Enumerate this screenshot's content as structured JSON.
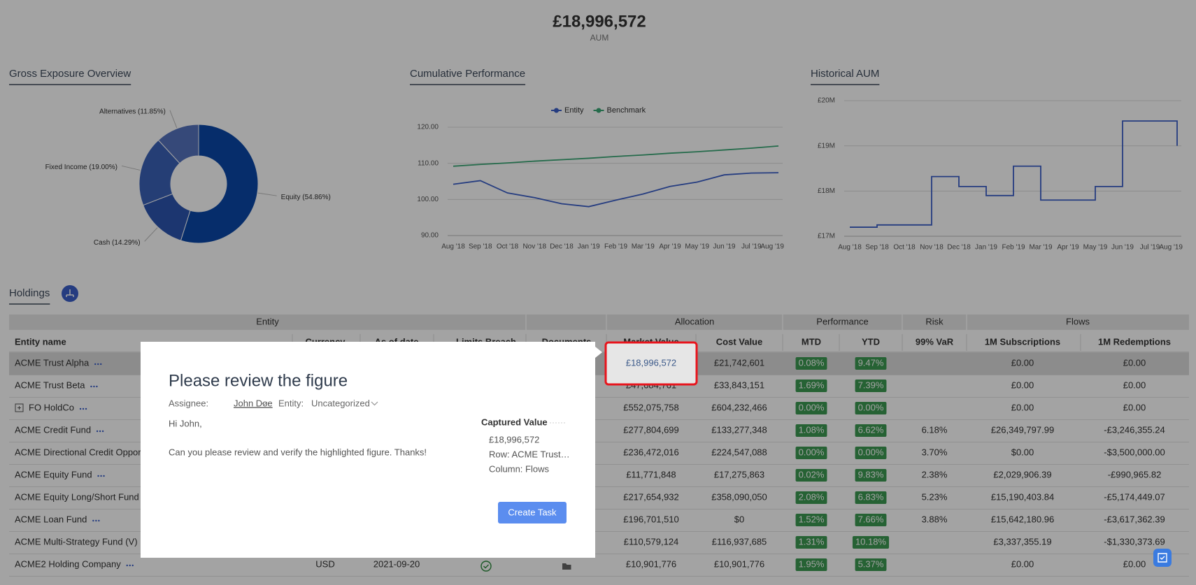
{
  "header": {
    "aum": "£18,996,572",
    "label": "AUM"
  },
  "charts": [
    {
      "type": "pie",
      "donut": true,
      "title": "Gross Exposure Overview",
      "values": [
        54.86,
        14.29,
        19.0,
        11.85
      ],
      "value_labels": [
        "Equity (54.86%)",
        "Cash (14.29%)",
        "Fixed Income (19.00%)",
        "Alternatives (11.85%)"
      ],
      "colors": [
        "#0a47a8",
        "#2c55b0",
        "#3a61b8",
        "#5572bd"
      ]
    },
    {
      "type": "line",
      "title": "Cumulative Performance",
      "categories": [
        "Aug '18",
        "Sep '18",
        "Oct '18",
        "Nov '18",
        "Dec '18",
        "Jan '19",
        "Feb '19",
        "Mar '19",
        "Apr '19",
        "May '19",
        "Jun '19",
        "Jul '19",
        "Aug '19"
      ],
      "series": [
        {
          "name": "Entity",
          "color": "#3a5fc8",
          "values": [
            104.2,
            105.2,
            101.8,
            100.5,
            98.8,
            98.0,
            99.8,
            101.5,
            103.6,
            104.8,
            106.8,
            107.3,
            107.4
          ]
        },
        {
          "name": "Benchmark",
          "color": "#3aa876",
          "values": [
            109.2,
            109.7,
            110.1,
            110.6,
            111.0,
            111.4,
            111.9,
            112.3,
            112.8,
            113.2,
            113.7,
            114.2,
            114.8
          ]
        }
      ],
      "ylim": [
        90,
        120
      ],
      "yticks": [
        {
          "value": 90,
          "label": "90.00"
        },
        {
          "value": 100,
          "label": "100.00"
        },
        {
          "value": 110,
          "label": "110.00"
        },
        {
          "value": 120,
          "label": "120.00"
        }
      ],
      "grid": true,
      "legend": "top"
    },
    {
      "type": "line",
      "step": "after",
      "title": "Historical AUM",
      "categories": [
        "Aug '18",
        "Sep '18",
        "Oct '18",
        "Nov '18",
        "Dec '18",
        "Jan '19",
        "Feb '19",
        "Mar '19",
        "Apr '19",
        "May '19",
        "Jun '19",
        "Jul '19",
        "Aug '19"
      ],
      "series": [
        {
          "color": "#3a5fc8",
          "values": [
            17200000,
            17250000,
            17250000,
            18320000,
            18100000,
            17900000,
            18550000,
            17800000,
            17800000,
            18100000,
            19550000,
            19550000,
            19000000
          ]
        }
      ],
      "ylim": [
        17000000,
        20000000
      ],
      "yticks": [
        {
          "value": 17000000,
          "label": "£17M"
        },
        {
          "value": 18000000,
          "label": "£18M"
        },
        {
          "value": 19000000,
          "label": "£19M"
        },
        {
          "value": 20000000,
          "label": "£20M"
        }
      ],
      "grid": true
    }
  ],
  "holdings": {
    "title": "Holdings",
    "groups": [
      "Entity",
      "Allocation",
      "Performance",
      "Risk",
      "Flows"
    ],
    "columns": [
      "Entity name",
      "Currency",
      "As of date",
      "Limits Breach",
      "Documents",
      "Market Value",
      "Cost Value",
      "MTD",
      "YTD",
      "99% VaR",
      "1M Subscriptions",
      "1M Redemptions"
    ],
    "rows": [
      [
        "ACME Trust Alpha",
        null,
        null,
        null,
        null,
        "£18,996,572",
        "£21,742,601",
        "0.08%",
        "9.47%",
        null,
        "£0.00",
        "£0.00"
      ],
      [
        "ACME Trust Beta",
        null,
        null,
        null,
        null,
        "£47,684,761",
        "£33,843,151",
        "1.69%",
        "7.39%",
        null,
        "£0.00",
        "£0.00"
      ],
      [
        "FO HoldCo",
        null,
        null,
        null,
        null,
        "£552,075,758",
        "£604,232,466",
        "0.00%",
        "0.00%",
        null,
        "£0.00",
        "£0.00"
      ],
      [
        "ACME Credit Fund",
        null,
        null,
        null,
        null,
        "£277,804,699",
        "£133,277,348",
        "1.08%",
        "6.62%",
        "6.18%",
        "£26,349,797.99",
        "-£3,246,355.24"
      ],
      [
        "ACME Directional Credit Oppor",
        null,
        null,
        null,
        null,
        "£236,472,016",
        "£224,547,088",
        "0.00%",
        "0.00%",
        "3.70%",
        "$0.00",
        "-$3,500,000.00"
      ],
      [
        "ACME Equity Fund",
        null,
        null,
        null,
        null,
        "£11,771,848",
        "£17,275,863",
        "0.02%",
        "9.83%",
        "2.38%",
        "£2,029,906.39",
        "-£990,965.82"
      ],
      [
        "ACME Equity Long/Short Fund",
        null,
        null,
        null,
        null,
        "£217,654,932",
        "£358,090,050",
        "2.08%",
        "6.83%",
        "5.23%",
        "£15,190,403.84",
        "-£5,174,449.07"
      ],
      [
        "ACME Loan Fund",
        null,
        null,
        null,
        null,
        "£196,701,510",
        "$0",
        "1.52%",
        "7.66%",
        "3.88%",
        "£15,642,180.96",
        "-£3,617,362.39"
      ],
      [
        "ACME Multi-Strategy Fund (V)",
        null,
        null,
        null,
        null,
        "£110,579,124",
        "£116,937,685",
        "1.31%",
        "10.18%",
        null,
        "£3,337,355.19",
        "-$1,330,373.69"
      ],
      [
        "ACME2 Holding Company",
        "USD",
        "2021-09-20",
        null,
        null,
        "£10,901,776",
        "£10,901,776",
        "1.95%",
        "5.37%",
        null,
        "£0.00",
        "£0.00"
      ]
    ]
  },
  "modal": {
    "title": "Please review the figure",
    "assignee_label": "Assignee:",
    "assignee": "John Doe",
    "entity_label": "Entity:",
    "entity": "Uncategorized",
    "greeting": "Hi John,",
    "message": "Can you please review and verify the highlighted figure. Thanks!",
    "captured_title": "Captured Value",
    "captured_value": "£18,996,572",
    "captured_row": "Row: ACME Trust…",
    "captured_column": "Column: Flows",
    "button": "Create Task"
  }
}
